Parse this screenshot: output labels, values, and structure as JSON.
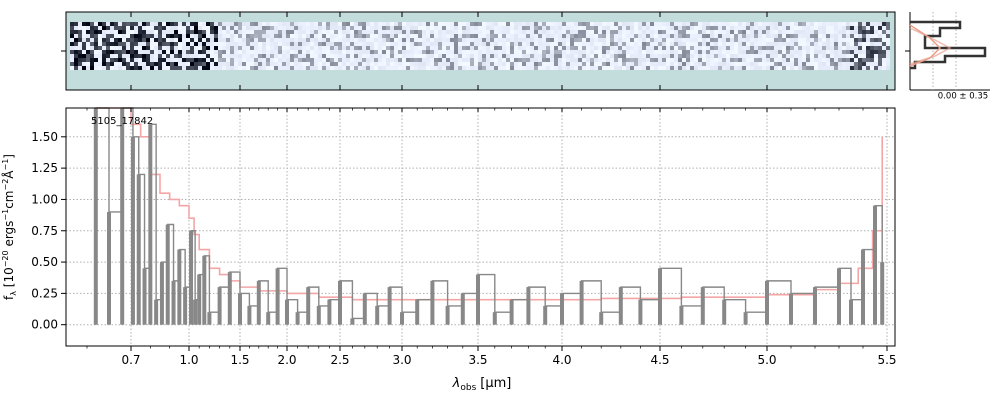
{
  "chart_data": {
    "type": "line",
    "object_label": "5105_17842",
    "xlabel_main": "λ",
    "xlabel_sub": "obs",
    "xlabel_unit": "[μm]",
    "ylabel": "f_λ [10^{-20} ergs^{-1}cm^{-2}Å^{-1}]",
    "xticks": [
      "0.7",
      "1.0",
      "1.5",
      "2.0",
      "2.5",
      "3.0",
      "3.5",
      "4.0",
      "4.5",
      "5.0",
      "5.5"
    ],
    "xtick_values": [
      0.7,
      1.0,
      1.5,
      2.0,
      2.5,
      3.0,
      3.5,
      4.0,
      4.5,
      5.0,
      5.5
    ],
    "yticks": [
      "0.00",
      "0.25",
      "0.50",
      "0.75",
      "1.00",
      "1.25",
      "1.50"
    ],
    "ytick_values": [
      0.0,
      0.25,
      0.5,
      0.75,
      1.0,
      1.25,
      1.5
    ],
    "ylim": [
      -0.17,
      1.73
    ],
    "xlim": [
      0.6,
      5.5
    ],
    "grid": true,
    "hist_label": "0.00 ± 0.35",
    "series": [
      {
        "role": "flux",
        "color": "#888888",
        "x": [
          0.62,
          0.65,
          0.68,
          0.71,
          0.74,
          0.77,
          0.8,
          0.83,
          0.86,
          0.89,
          0.92,
          0.95,
          0.98,
          1.02,
          1.06,
          1.1,
          1.15,
          1.2,
          1.3,
          1.4,
          1.5,
          1.6,
          1.7,
          1.8,
          1.9,
          2.0,
          2.1,
          2.2,
          2.3,
          2.4,
          2.5,
          2.6,
          2.7,
          2.8,
          2.9,
          3.0,
          3.1,
          3.2,
          3.3,
          3.4,
          3.5,
          3.6,
          3.7,
          3.8,
          3.9,
          4.0,
          4.1,
          4.2,
          4.3,
          4.4,
          4.5,
          4.6,
          4.7,
          4.8,
          4.9,
          5.0,
          5.1,
          5.2,
          5.3,
          5.35,
          5.4,
          5.45,
          5.48
        ],
        "values": [
          1.73,
          0.9,
          1.73,
          1.5,
          1.2,
          0.45,
          1.6,
          0.2,
          0.5,
          0.8,
          0.35,
          0.6,
          0.3,
          0.75,
          0.2,
          0.4,
          0.55,
          0.1,
          0.3,
          0.42,
          0.25,
          0.15,
          0.35,
          0.1,
          0.45,
          0.2,
          0.1,
          0.3,
          0.15,
          0.2,
          0.35,
          0.05,
          0.25,
          0.15,
          0.3,
          0.1,
          0.2,
          0.35,
          0.15,
          0.25,
          0.4,
          0.1,
          0.2,
          0.3,
          0.15,
          0.25,
          0.35,
          0.1,
          0.3,
          0.2,
          0.45,
          0.15,
          0.3,
          0.2,
          0.1,
          0.35,
          0.25,
          0.3,
          0.45,
          0.2,
          0.6,
          0.95,
          0.5
        ]
      },
      {
        "role": "error",
        "color": "#f4a6a6",
        "x": [
          0.62,
          0.66,
          0.7,
          0.75,
          0.8,
          0.85,
          0.9,
          0.95,
          1.0,
          1.05,
          1.1,
          1.2,
          1.3,
          1.4,
          1.5,
          1.7,
          2.0,
          2.3,
          2.6,
          3.0,
          3.4,
          3.8,
          4.2,
          4.6,
          5.0,
          5.2,
          5.3,
          5.38,
          5.44,
          5.48
        ],
        "values": [
          1.73,
          1.73,
          1.6,
          1.5,
          1.2,
          1.05,
          1.0,
          0.95,
          0.85,
          0.72,
          0.6,
          0.45,
          0.4,
          0.35,
          0.3,
          0.27,
          0.25,
          0.22,
          0.2,
          0.2,
          0.2,
          0.2,
          0.21,
          0.22,
          0.24,
          0.28,
          0.33,
          0.45,
          0.75,
          1.5
        ]
      }
    ]
  },
  "colors": {
    "panel_bg": "#c3dcdc",
    "grid": "#b0b0b0",
    "flux": "#888888",
    "error": "#f4a6a6",
    "hist_dark": "#333333",
    "hist_light": "#e8a08a"
  }
}
